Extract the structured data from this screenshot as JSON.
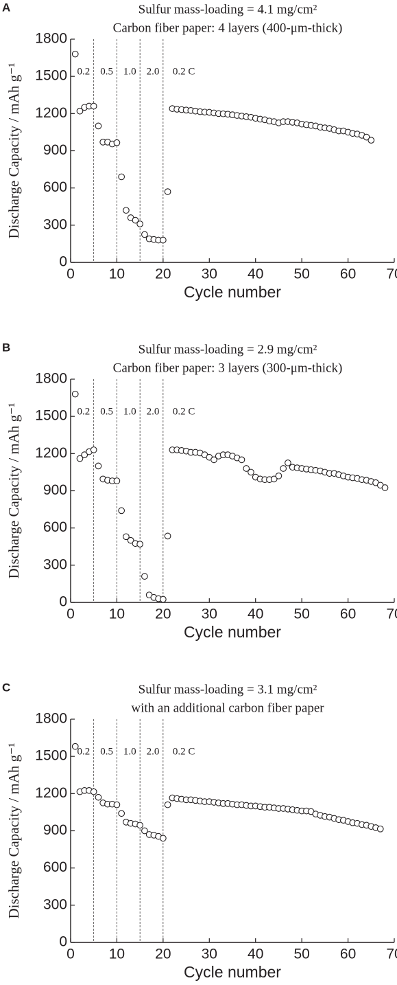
{
  "chart_data": [
    {
      "type": "scatter",
      "panel": "A",
      "title": "Sulfur mass-loading = 4.1 mg/cm²",
      "subtitle": "Carbon fiber paper: 4 layers (400-μm-thick)",
      "xlabel": "Cycle number",
      "ylabel": "Discharge Capacity / mAh g⁻¹",
      "color": "#231f20",
      "xlim": [
        0,
        70
      ],
      "ylim": [
        0,
        1800
      ],
      "xticks": [
        0,
        10,
        20,
        30,
        40,
        50,
        60,
        70
      ],
      "yticks": [
        0,
        300,
        600,
        900,
        1200,
        1500,
        1800
      ],
      "dividers": [
        5,
        10,
        15,
        20
      ],
      "annotations": [
        "0.2",
        "0.5",
        "1.0",
        "2.0",
        "0.2 C"
      ],
      "x": [
        1,
        2,
        3,
        4,
        5,
        6,
        7,
        8,
        9,
        10,
        11,
        12,
        13,
        14,
        15,
        16,
        17,
        18,
        19,
        20,
        21,
        22,
        23,
        24,
        25,
        26,
        27,
        28,
        29,
        30,
        31,
        32,
        33,
        34,
        35,
        36,
        37,
        38,
        39,
        40,
        41,
        42,
        43,
        44,
        45,
        46,
        47,
        48,
        49,
        50,
        51,
        52,
        53,
        54,
        55,
        56,
        57,
        58,
        59,
        60,
        61,
        62,
        63,
        64,
        65
      ],
      "values": [
        1680,
        1220,
        1250,
        1260,
        1260,
        1100,
        970,
        970,
        955,
        965,
        690,
        420,
        360,
        340,
        310,
        225,
        190,
        185,
        180,
        180,
        570,
        1240,
        1235,
        1232,
        1228,
        1225,
        1220,
        1215,
        1212,
        1210,
        1205,
        1200,
        1198,
        1195,
        1190,
        1185,
        1180,
        1175,
        1170,
        1162,
        1155,
        1150,
        1140,
        1135,
        1125,
        1135,
        1135,
        1130,
        1125,
        1115,
        1110,
        1105,
        1100,
        1090,
        1085,
        1080,
        1070,
        1060,
        1060,
        1050,
        1040,
        1035,
        1025,
        1010,
        985
      ]
    },
    {
      "type": "scatter",
      "panel": "B",
      "title": "Sulfur mass-loading = 2.9 mg/cm²",
      "subtitle": "Carbon fiber paper: 3 layers (300-μm-thick)",
      "xlabel": "Cycle number",
      "ylabel": "Discharge Capacity / mAh g⁻¹",
      "color": "#231f20",
      "xlim": [
        0,
        70
      ],
      "ylim": [
        0,
        1800
      ],
      "xticks": [
        0,
        10,
        20,
        30,
        40,
        50,
        60,
        70
      ],
      "yticks": [
        0,
        300,
        600,
        900,
        1200,
        1500,
        1800
      ],
      "dividers": [
        5,
        10,
        15,
        20
      ],
      "annotations": [
        "0.2",
        "0.5",
        "1.0",
        "2.0",
        "0.2 C"
      ],
      "x": [
        1,
        2,
        3,
        4,
        5,
        6,
        7,
        8,
        9,
        10,
        11,
        12,
        13,
        14,
        15,
        16,
        17,
        18,
        19,
        20,
        21,
        22,
        23,
        24,
        25,
        26,
        27,
        28,
        29,
        30,
        31,
        32,
        33,
        34,
        35,
        36,
        37,
        38,
        39,
        40,
        41,
        42,
        43,
        44,
        45,
        46,
        47,
        48,
        49,
        50,
        51,
        52,
        53,
        54,
        55,
        56,
        57,
        58,
        59,
        60,
        61,
        62,
        63,
        64,
        65,
        66,
        67,
        68
      ],
      "values": [
        1680,
        1160,
        1190,
        1215,
        1230,
        1100,
        995,
        985,
        980,
        980,
        740,
        530,
        500,
        475,
        470,
        210,
        60,
        40,
        30,
        25,
        535,
        1230,
        1230,
        1225,
        1220,
        1210,
        1210,
        1205,
        1190,
        1170,
        1150,
        1180,
        1190,
        1190,
        1180,
        1165,
        1150,
        1080,
        1050,
        1010,
        995,
        990,
        990,
        995,
        1020,
        1080,
        1125,
        1090,
        1085,
        1080,
        1075,
        1070,
        1065,
        1060,
        1050,
        1040,
        1040,
        1030,
        1020,
        1010,
        1005,
        1000,
        990,
        985,
        975,
        965,
        945,
        925
      ]
    },
    {
      "type": "scatter",
      "panel": "C",
      "title": "Sulfur mass-loading = 3.1 mg/cm²",
      "subtitle": "with an additional carbon fiber paper",
      "xlabel": "Cycle number",
      "ylabel": "Discharge Capacity / mAh g⁻¹",
      "color": "#231f20",
      "xlim": [
        0,
        70
      ],
      "ylim": [
        0,
        1800
      ],
      "xticks": [
        0,
        10,
        20,
        30,
        40,
        50,
        60,
        70
      ],
      "yticks": [
        0,
        300,
        600,
        900,
        1200,
        1500,
        1800
      ],
      "dividers": [
        5,
        10,
        15,
        20
      ],
      "annotations": [
        "0.2",
        "0.5",
        "1.0",
        "2.0",
        "0.2 C"
      ],
      "x": [
        1,
        2,
        3,
        4,
        5,
        6,
        7,
        8,
        9,
        10,
        11,
        12,
        13,
        14,
        15,
        16,
        17,
        18,
        19,
        20,
        21,
        22,
        23,
        24,
        25,
        26,
        27,
        28,
        29,
        30,
        31,
        32,
        33,
        34,
        35,
        36,
        37,
        38,
        39,
        40,
        41,
        42,
        43,
        44,
        45,
        46,
        47,
        48,
        49,
        50,
        51,
        52,
        53,
        54,
        55,
        56,
        57,
        58,
        59,
        60,
        61,
        62,
        63,
        64,
        65,
        66,
        67
      ],
      "values": [
        1580,
        1215,
        1225,
        1225,
        1215,
        1170,
        1125,
        1115,
        1115,
        1110,
        1040,
        970,
        960,
        955,
        945,
        900,
        870,
        865,
        855,
        840,
        1110,
        1165,
        1160,
        1155,
        1150,
        1150,
        1145,
        1140,
        1135,
        1135,
        1130,
        1125,
        1120,
        1120,
        1115,
        1110,
        1110,
        1105,
        1100,
        1100,
        1095,
        1090,
        1090,
        1085,
        1080,
        1080,
        1075,
        1070,
        1065,
        1060,
        1060,
        1055,
        1035,
        1025,
        1015,
        1010,
        1000,
        990,
        985,
        975,
        965,
        960,
        950,
        945,
        935,
        925,
        915
      ]
    }
  ]
}
